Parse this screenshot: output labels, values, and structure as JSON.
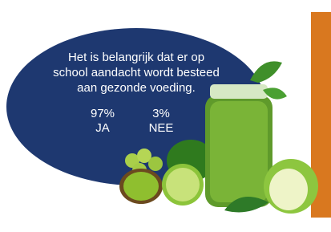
{
  "statement": [
    "Het is belangrijk dat er op",
    "school aandacht wordt besteed",
    "aan gezonde voeding."
  ],
  "results": [
    {
      "value": "97%",
      "label": "JA"
    },
    {
      "value": "3%",
      "label": "NEE"
    }
  ]
}
